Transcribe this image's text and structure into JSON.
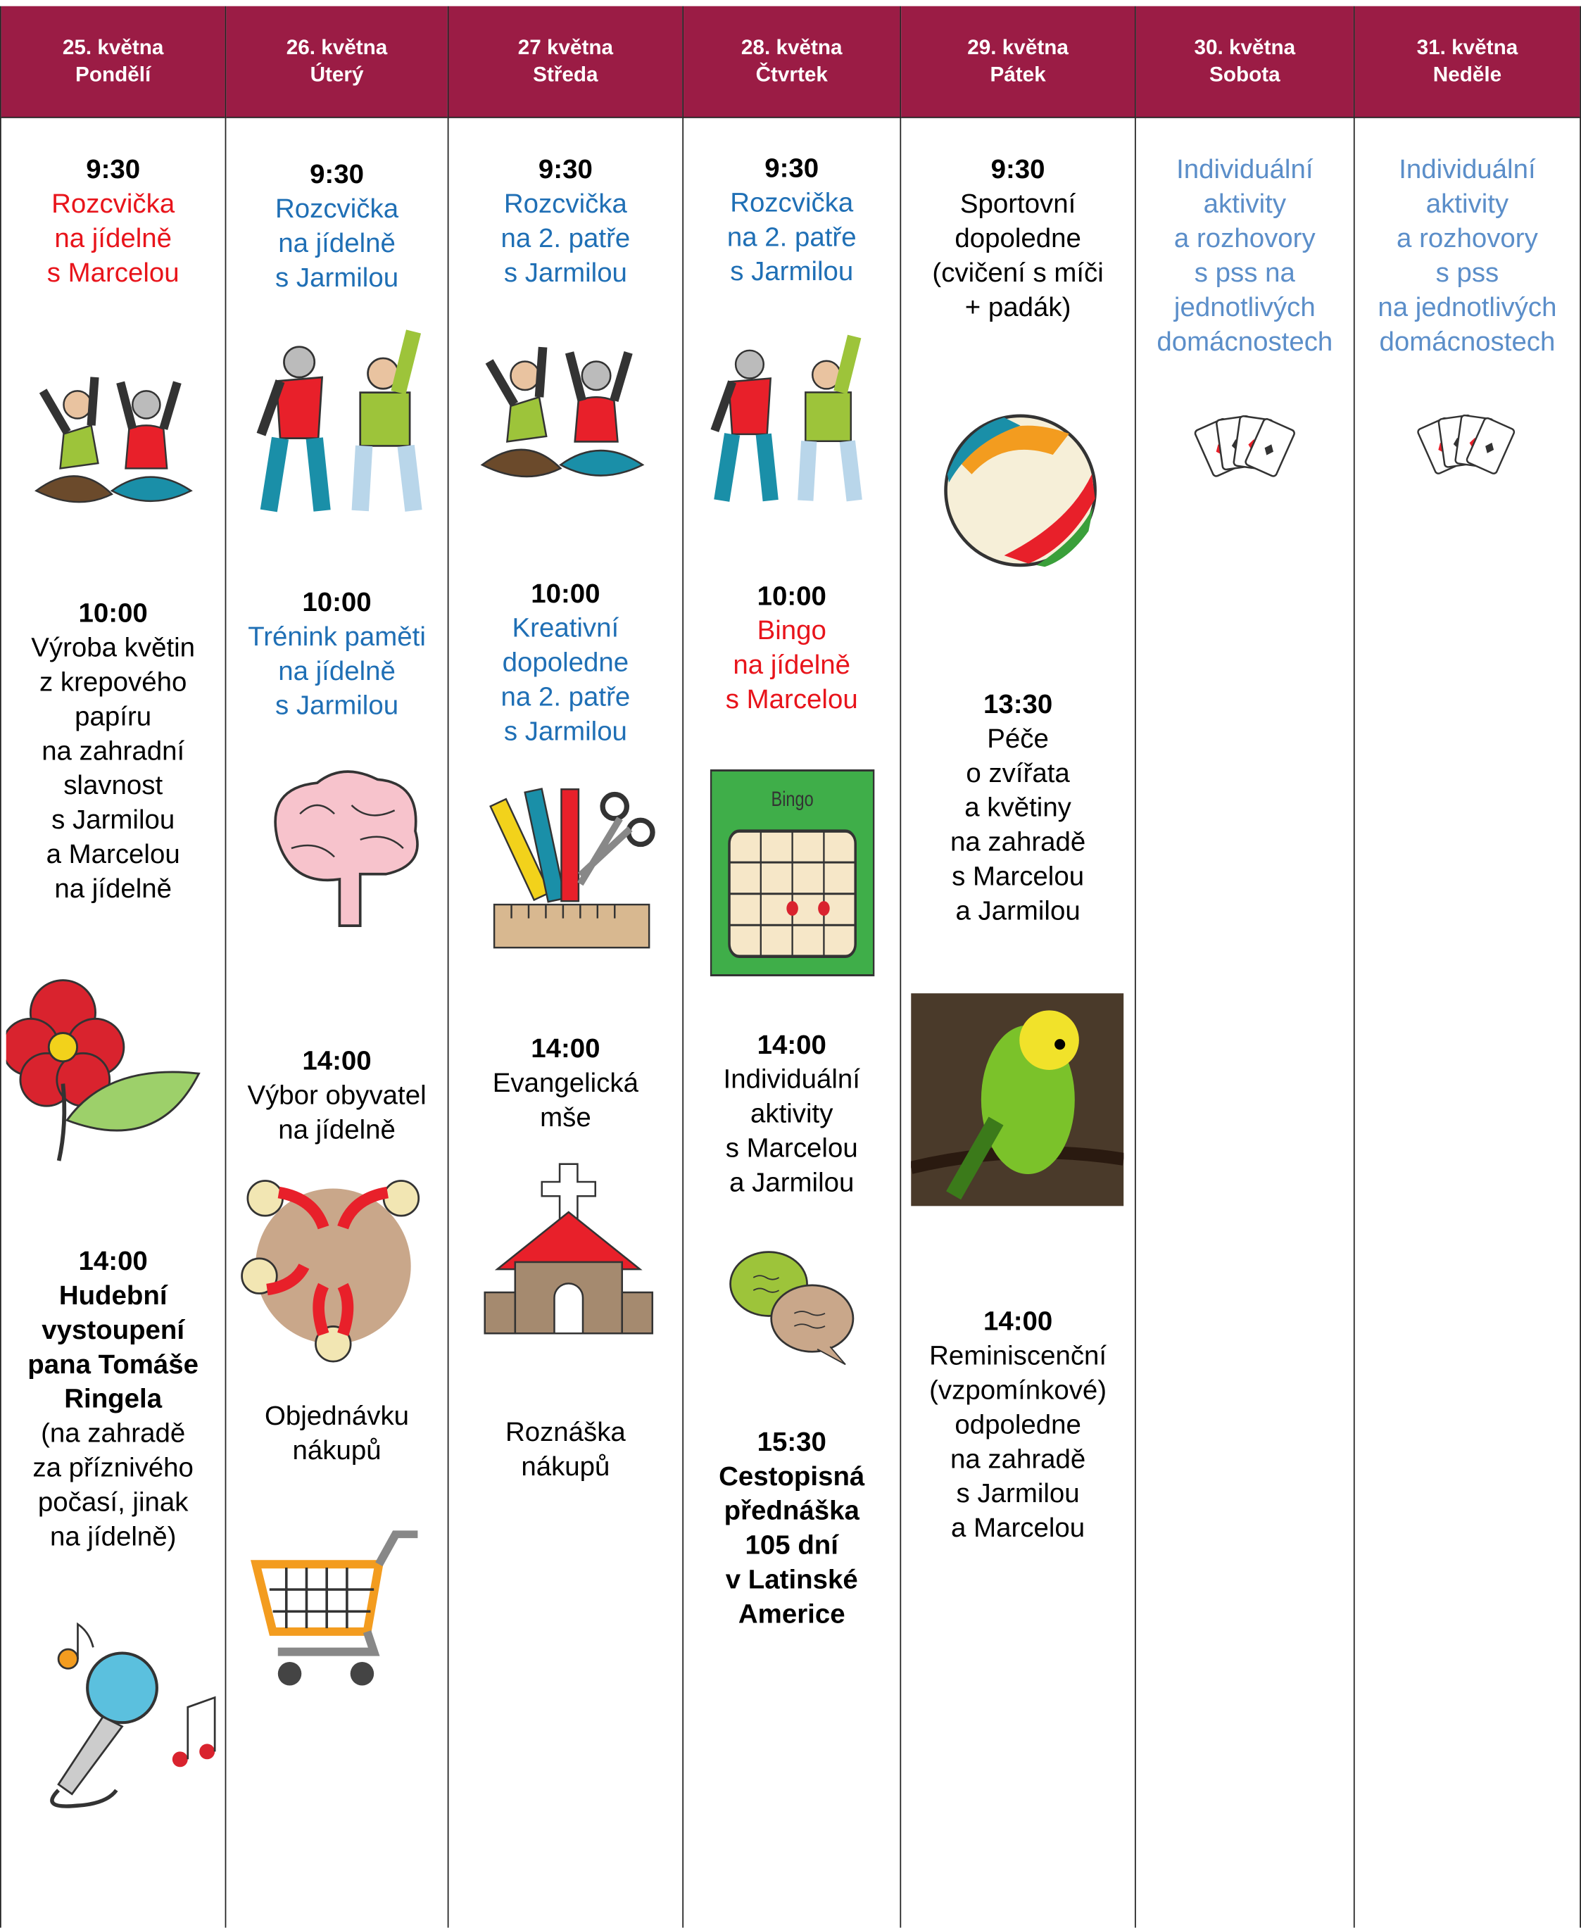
{
  "columns": [
    {
      "date": "25. května",
      "day": "Pondělí",
      "entries": [
        {
          "time": "9:30",
          "lines": [
            "Rozcvička",
            "na jídelně",
            "s Marcelou"
          ],
          "color": "#e8141b"
        },
        {
          "time": "10:00",
          "lines": [
            "Výroba květin",
            "z krepového",
            "papíru",
            "na zahradní",
            "slavnost",
            "s Jarmilou",
            "a Marcelou",
            "na jídelně"
          ],
          "color": "#000000"
        },
        {
          "time": "14:00",
          "bold": [
            "Hudební",
            "vystoupení",
            "pana Tomáše",
            "Ringela"
          ],
          "lines": [
            "(na zahradě",
            "za příznivého",
            "počasí, jinak",
            "na jídelně)"
          ],
          "color": "#000000"
        }
      ]
    },
    {
      "date": "26. května",
      "day": "Úterý",
      "entries": [
        {
          "time": "9:30",
          "lines": [
            "Rozcvička",
            "na jídelně",
            "s Jarmilou"
          ],
          "color": "#1f6fb5"
        },
        {
          "time": "10:00",
          "lines": [
            "Trénink paměti",
            "na jídelně",
            "s Jarmilou"
          ],
          "color": "#1f6fb5"
        },
        {
          "time": "14:00",
          "lines": [
            "Výbor obyvatel",
            "na jídelně"
          ],
          "color": "#000000"
        },
        {
          "lines": [
            "Objednávku",
            "nákupů"
          ],
          "color": "#000000"
        }
      ]
    },
    {
      "date": "27 května",
      "day": "Středa",
      "entries": [
        {
          "time": "9:30",
          "lines": [
            "Rozcvička",
            "na 2. patře",
            "s Jarmilou"
          ],
          "color": "#1f6fb5"
        },
        {
          "time": "10:00",
          "lines": [
            "Kreativní",
            "dopoledne",
            "na 2. patře",
            "s Jarmilou"
          ],
          "color": "#1f6fb5"
        },
        {
          "time": "14:00",
          "lines": [
            "Evangelická",
            "mše"
          ],
          "color": "#000000"
        },
        {
          "lines": [
            "Roznáška",
            "nákupů"
          ],
          "color": "#000000"
        }
      ]
    },
    {
      "date": "28. května",
      "day": "Čtvrtek",
      "entries": [
        {
          "time": "9:30",
          "lines": [
            "Rozcvička",
            "na 2. patře",
            "s Jarmilou"
          ],
          "color": "#1f6fb5"
        },
        {
          "time": "10:00",
          "lines": [
            "Bingo",
            "na jídelně",
            "s Marcelou"
          ],
          "color": "#e8141b",
          "image_text": "Bingo"
        },
        {
          "time": "14:00",
          "lines": [
            "Individuální",
            "aktivity",
            "s Marcelou",
            "a Jarmilou"
          ],
          "color": "#000000"
        },
        {
          "time": "15:30",
          "bold": [
            "Cestopisná",
            "přednáška",
            "105 dní",
            "v Latinské",
            "Americe"
          ],
          "color": "#000000"
        }
      ]
    },
    {
      "date": "29. května",
      "day": "Pátek",
      "entries": [
        {
          "time": "9:30",
          "lines": [
            "Sportovní",
            "dopoledne",
            "(cvičení s míči",
            "+ padák)"
          ],
          "color": "#000000"
        },
        {
          "time": "13:30",
          "lines": [
            "Péče",
            "o zvířata",
            "a květiny",
            "na zahradě",
            "s Marcelou",
            "a Jarmilou"
          ],
          "color": "#000000"
        },
        {
          "time": "14:00",
          "lines": [
            "Reminiscenční",
            "(vzpomínkové)",
            "odpoledne",
            "na zahradě",
            "s Jarmilou",
            "a Marcelou"
          ],
          "color": "#000000"
        }
      ]
    },
    {
      "date": "30. května",
      "day": "Sobota",
      "entries": [
        {
          "lines": [
            "Individuální",
            "aktivity",
            "a rozhovory",
            "s pss na",
            "jednotlivých",
            "domácnostech"
          ],
          "color": "#5b8ec9"
        }
      ]
    },
    {
      "date": "31. května",
      "day": "Neděle",
      "entries": [
        {
          "lines": [
            "Individuální",
            "aktivity",
            "a rozhovory",
            "s pss",
            "na jednotlivých",
            "domácnostech"
          ],
          "color": "#5b8ec9"
        }
      ]
    }
  ]
}
